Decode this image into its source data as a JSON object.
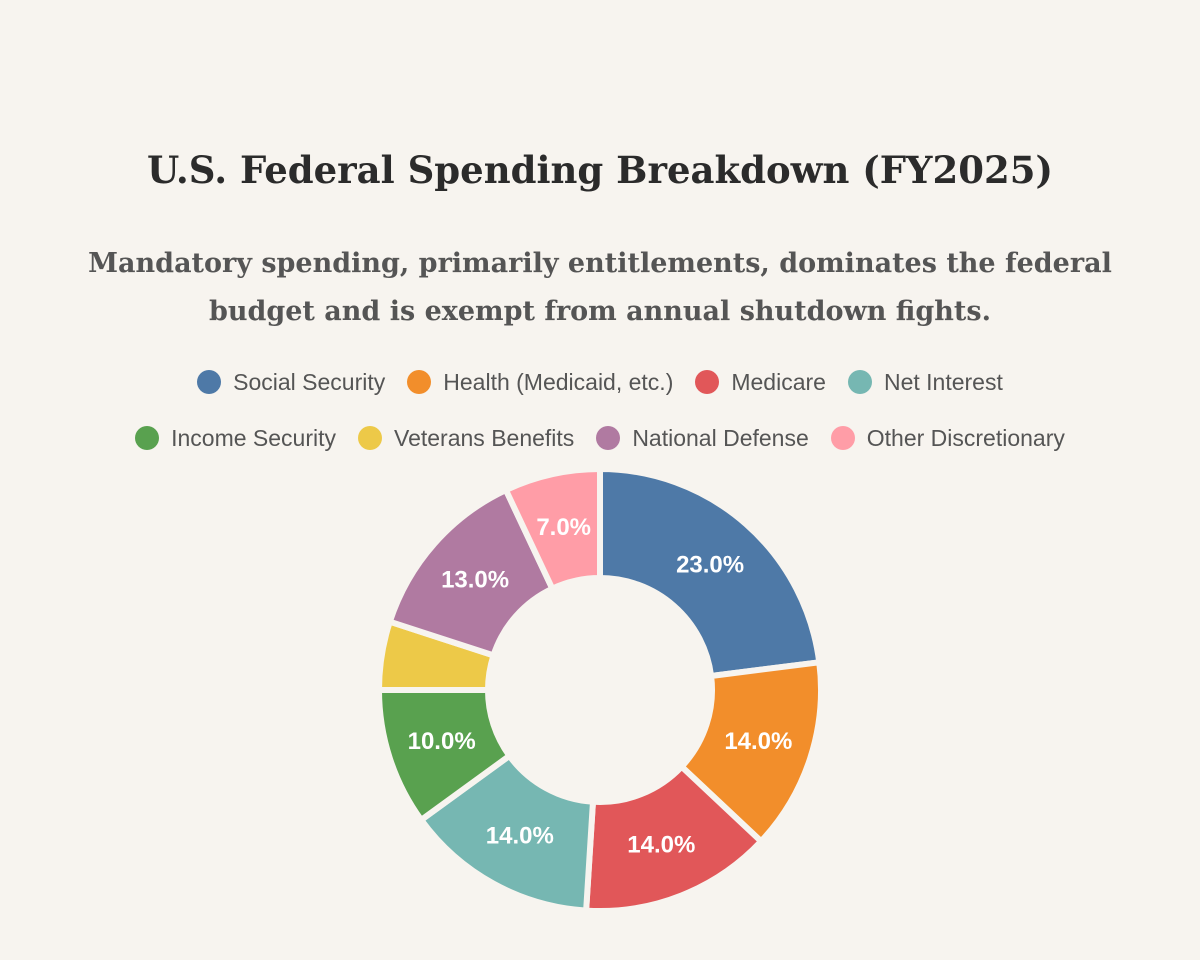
{
  "page": {
    "title": "U.S. Federal Spending Breakdown (FY2025)",
    "subtitle": "Mandatory spending, primarily entitlements, dominates the federal budget and is exempt from annual shutdown fights.",
    "background_color": "#f7f4ef"
  },
  "chart_data": {
    "type": "pie",
    "variant": "donut",
    "title": "U.S. Federal Spending Breakdown (FY2025)",
    "subtitle": "Mandatory spending, primarily entitlements, dominates the federal budget and is exempt from annual shutdown fights.",
    "legend_position": "top",
    "unit": "%",
    "categories": [
      "Social Security",
      "Health (Medicaid, etc.)",
      "Medicare",
      "Net Interest",
      "Income Security",
      "Veterans Benefits",
      "National Defense",
      "Other Discretionary"
    ],
    "values": [
      23,
      14,
      14,
      14,
      10,
      5,
      13,
      7
    ],
    "value_labels": [
      "23.0%",
      "14.0%",
      "14.0%",
      "14.0%",
      "10.0%",
      "",
      "13.0%",
      "7.0%"
    ],
    "colors": [
      "#4e79a7",
      "#f28e2b",
      "#e15759",
      "#76b7b2",
      "#59a14f",
      "#edc948",
      "#b07aa1",
      "#ff9da7"
    ]
  }
}
